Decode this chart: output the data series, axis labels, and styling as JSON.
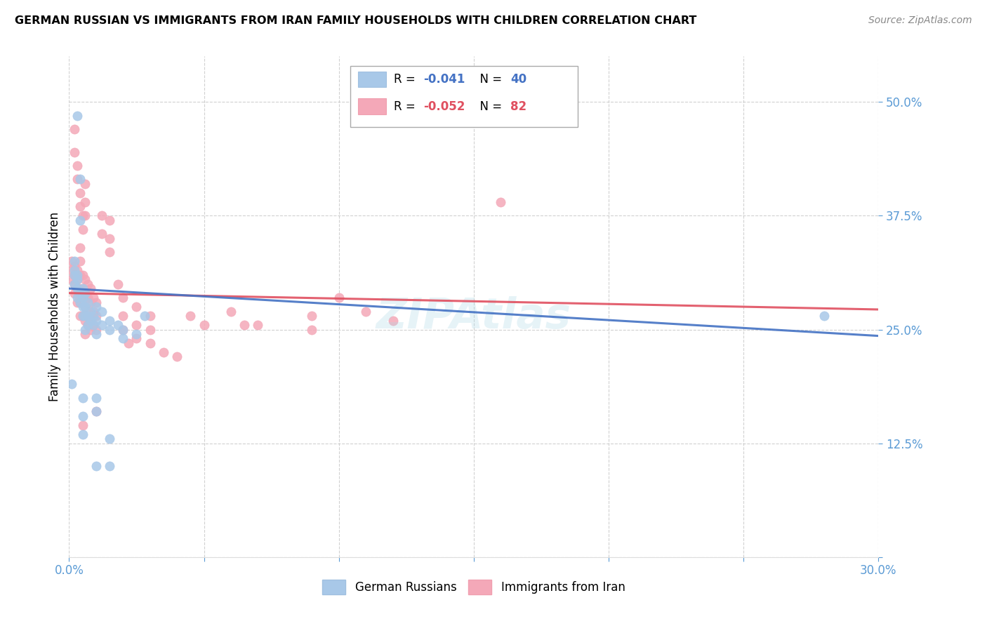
{
  "title": "GERMAN RUSSIAN VS IMMIGRANTS FROM IRAN FAMILY HOUSEHOLDS WITH CHILDREN CORRELATION CHART",
  "source": "Source: ZipAtlas.com",
  "ylabel": "Family Households with Children",
  "xlim": [
    0.0,
    0.3
  ],
  "ylim": [
    0.0,
    0.55
  ],
  "yticks": [
    0.0,
    0.125,
    0.25,
    0.375,
    0.5
  ],
  "ytick_labels": [
    "",
    "12.5%",
    "25.0%",
    "37.5%",
    "50.0%"
  ],
  "xticks": [
    0.0,
    0.05,
    0.1,
    0.15,
    0.2,
    0.25,
    0.3
  ],
  "xtick_labels": [
    "0.0%",
    "",
    "",
    "",
    "",
    "",
    "30.0%"
  ],
  "blue_color": "#a8c8e8",
  "pink_color": "#f4a8b8",
  "blue_line_color": "#4472c4",
  "pink_line_color": "#e05060",
  "axis_color": "#5b9bd5",
  "grid_color": "#cccccc",
  "blue_line": [
    0.0,
    0.295,
    0.3,
    0.243
  ],
  "pink_line": [
    0.0,
    0.29,
    0.3,
    0.272
  ],
  "german_russians": [
    [
      0.003,
      0.485
    ],
    [
      0.004,
      0.415
    ],
    [
      0.004,
      0.37
    ],
    [
      0.002,
      0.325
    ],
    [
      0.002,
      0.315
    ],
    [
      0.003,
      0.31
    ],
    [
      0.002,
      0.31
    ],
    [
      0.003,
      0.305
    ],
    [
      0.002,
      0.3
    ],
    [
      0.003,
      0.295
    ],
    [
      0.004,
      0.29
    ],
    [
      0.003,
      0.285
    ],
    [
      0.004,
      0.28
    ],
    [
      0.005,
      0.295
    ],
    [
      0.005,
      0.285
    ],
    [
      0.005,
      0.275
    ],
    [
      0.005,
      0.265
    ],
    [
      0.006,
      0.29
    ],
    [
      0.006,
      0.275
    ],
    [
      0.006,
      0.265
    ],
    [
      0.006,
      0.25
    ],
    [
      0.007,
      0.28
    ],
    [
      0.007,
      0.265
    ],
    [
      0.007,
      0.255
    ],
    [
      0.008,
      0.27
    ],
    [
      0.008,
      0.26
    ],
    [
      0.009,
      0.265
    ],
    [
      0.009,
      0.255
    ],
    [
      0.01,
      0.275
    ],
    [
      0.01,
      0.26
    ],
    [
      0.01,
      0.245
    ],
    [
      0.012,
      0.27
    ],
    [
      0.012,
      0.255
    ],
    [
      0.015,
      0.26
    ],
    [
      0.015,
      0.25
    ],
    [
      0.018,
      0.255
    ],
    [
      0.02,
      0.25
    ],
    [
      0.02,
      0.24
    ],
    [
      0.025,
      0.245
    ],
    [
      0.028,
      0.265
    ],
    [
      0.001,
      0.19
    ],
    [
      0.005,
      0.175
    ],
    [
      0.005,
      0.155
    ],
    [
      0.005,
      0.135
    ],
    [
      0.01,
      0.175
    ],
    [
      0.01,
      0.16
    ],
    [
      0.01,
      0.1
    ],
    [
      0.015,
      0.13
    ],
    [
      0.015,
      0.1
    ],
    [
      0.28,
      0.265
    ]
  ],
  "iran_immigrants": [
    [
      0.002,
      0.47
    ],
    [
      0.002,
      0.445
    ],
    [
      0.003,
      0.43
    ],
    [
      0.003,
      0.415
    ],
    [
      0.004,
      0.4
    ],
    [
      0.004,
      0.385
    ],
    [
      0.005,
      0.375
    ],
    [
      0.005,
      0.36
    ],
    [
      0.006,
      0.41
    ],
    [
      0.006,
      0.39
    ],
    [
      0.006,
      0.375
    ],
    [
      0.001,
      0.325
    ],
    [
      0.001,
      0.315
    ],
    [
      0.001,
      0.305
    ],
    [
      0.002,
      0.32
    ],
    [
      0.002,
      0.31
    ],
    [
      0.002,
      0.3
    ],
    [
      0.002,
      0.29
    ],
    [
      0.003,
      0.315
    ],
    [
      0.003,
      0.305
    ],
    [
      0.003,
      0.295
    ],
    [
      0.003,
      0.28
    ],
    [
      0.004,
      0.34
    ],
    [
      0.004,
      0.325
    ],
    [
      0.004,
      0.31
    ],
    [
      0.004,
      0.295
    ],
    [
      0.004,
      0.28
    ],
    [
      0.004,
      0.265
    ],
    [
      0.005,
      0.31
    ],
    [
      0.005,
      0.295
    ],
    [
      0.005,
      0.28
    ],
    [
      0.005,
      0.265
    ],
    [
      0.006,
      0.305
    ],
    [
      0.006,
      0.29
    ],
    [
      0.006,
      0.275
    ],
    [
      0.006,
      0.26
    ],
    [
      0.006,
      0.245
    ],
    [
      0.007,
      0.3
    ],
    [
      0.007,
      0.285
    ],
    [
      0.007,
      0.27
    ],
    [
      0.007,
      0.255
    ],
    [
      0.008,
      0.295
    ],
    [
      0.008,
      0.28
    ],
    [
      0.008,
      0.265
    ],
    [
      0.008,
      0.25
    ],
    [
      0.009,
      0.285
    ],
    [
      0.009,
      0.27
    ],
    [
      0.009,
      0.255
    ],
    [
      0.01,
      0.28
    ],
    [
      0.01,
      0.265
    ],
    [
      0.01,
      0.25
    ],
    [
      0.012,
      0.375
    ],
    [
      0.012,
      0.355
    ],
    [
      0.015,
      0.37
    ],
    [
      0.015,
      0.35
    ],
    [
      0.015,
      0.335
    ],
    [
      0.018,
      0.3
    ],
    [
      0.02,
      0.285
    ],
    [
      0.02,
      0.265
    ],
    [
      0.02,
      0.25
    ],
    [
      0.022,
      0.235
    ],
    [
      0.025,
      0.275
    ],
    [
      0.025,
      0.255
    ],
    [
      0.025,
      0.24
    ],
    [
      0.03,
      0.265
    ],
    [
      0.03,
      0.25
    ],
    [
      0.03,
      0.235
    ],
    [
      0.035,
      0.225
    ],
    [
      0.04,
      0.22
    ],
    [
      0.045,
      0.265
    ],
    [
      0.05,
      0.255
    ],
    [
      0.06,
      0.27
    ],
    [
      0.065,
      0.255
    ],
    [
      0.07,
      0.255
    ],
    [
      0.09,
      0.265
    ],
    [
      0.09,
      0.25
    ],
    [
      0.1,
      0.285
    ],
    [
      0.11,
      0.27
    ],
    [
      0.12,
      0.26
    ],
    [
      0.16,
      0.39
    ],
    [
      0.005,
      0.145
    ],
    [
      0.01,
      0.16
    ]
  ]
}
